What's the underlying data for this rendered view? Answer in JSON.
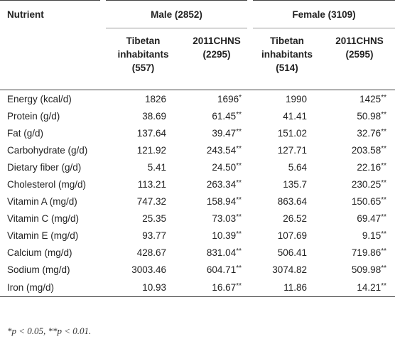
{
  "header": {
    "nutrient": "Nutrient",
    "male_group": "Male (2852)",
    "female_group": "Female (3109)",
    "male_tibetan": [
      "Tibetan",
      "inhabitants",
      "(557)"
    ],
    "male_chns": [
      "2011CHNS",
      "(2295)"
    ],
    "female_tibetan": [
      "Tibetan",
      "inhabitants",
      "(514)"
    ],
    "female_chns": [
      "2011CHNS",
      "(2595)"
    ]
  },
  "rows": [
    {
      "name": "Energy (kcal/d)",
      "m_tib": "1826",
      "m_chns": "1696",
      "m_sig": "*",
      "f_tib": "1990",
      "f_chns": "1425",
      "f_sig": "**"
    },
    {
      "name": "Protein (g/d)",
      "m_tib": "38.69",
      "m_chns": "61.45",
      "m_sig": "**",
      "f_tib": "41.41",
      "f_chns": "50.98",
      "f_sig": "**"
    },
    {
      "name": "Fat (g/d)",
      "m_tib": "137.64",
      "m_chns": "39.47",
      "m_sig": "**",
      "f_tib": "151.02",
      "f_chns": "32.76",
      "f_sig": "**"
    },
    {
      "name": "Carbohydrate (g/d)",
      "m_tib": "121.92",
      "m_chns": "243.54",
      "m_sig": "**",
      "f_tib": "127.71",
      "f_chns": "203.58",
      "f_sig": "**"
    },
    {
      "name": "Dietary fiber (g/d)",
      "m_tib": "5.41",
      "m_chns": "24.50",
      "m_sig": "**",
      "f_tib": "5.64",
      "f_chns": "22.16",
      "f_sig": "**"
    },
    {
      "name": "Cholesterol (mg/d)",
      "m_tib": "113.21",
      "m_chns": "263.34",
      "m_sig": "**",
      "f_tib": "135.7",
      "f_chns": "230.25",
      "f_sig": "**"
    },
    {
      "name": "Vitamin A (mg/d)",
      "m_tib": "747.32",
      "m_chns": "158.94",
      "m_sig": "**",
      "f_tib": "863.64",
      "f_chns": "150.65",
      "f_sig": "**"
    },
    {
      "name": "Vitamin C (mg/d)",
      "m_tib": "25.35",
      "m_chns": "73.03",
      "m_sig": "**",
      "f_tib": "26.52",
      "f_chns": "69.47",
      "f_sig": "**"
    },
    {
      "name": "Vitamin E (mg/d)",
      "m_tib": "93.77",
      "m_chns": "10.39",
      "m_sig": "**",
      "f_tib": "107.69",
      "f_chns": "9.15",
      "f_sig": "**"
    },
    {
      "name": "Calcium (mg/d)",
      "m_tib": "428.67",
      "m_chns": "831.04",
      "m_sig": "**",
      "f_tib": "506.41",
      "f_chns": "719.86",
      "f_sig": "**"
    },
    {
      "name": "Sodium (mg/d)",
      "m_tib": "3003.46",
      "m_chns": "604.71",
      "m_sig": "**",
      "f_tib": "3074.82",
      "f_chns": "509.98",
      "f_sig": "**"
    },
    {
      "name": "Iron (mg/d)",
      "m_tib": "10.93",
      "m_chns": "16.67",
      "m_sig": "**",
      "f_tib": "11.86",
      "f_chns": "14.21",
      "f_sig": "**"
    }
  ],
  "footnote": "*p < 0.05, **p < 0.01."
}
